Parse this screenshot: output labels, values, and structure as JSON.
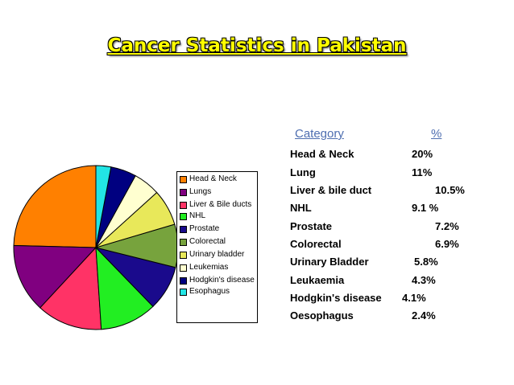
{
  "slide": {
    "title": "Cancer Statistics in Pakistan"
  },
  "table": {
    "header_category": "Category",
    "header_percent": "%",
    "rows": [
      {
        "label": "Head & Neck",
        "value": "20%"
      },
      {
        "label": "Lung",
        "value": "11%"
      },
      {
        "label": "Liver & bile duct",
        "value": "10.5%"
      },
      {
        "label": "NHL",
        "value": "9.1 %"
      },
      {
        "label": "Prostate",
        "value": "7.2%"
      },
      {
        "label": "Colorectal",
        "value": "6.9%"
      },
      {
        "label": "Urinary Bladder",
        "value": "5.8%"
      },
      {
        "label": "Leukaemia",
        "value": "4.3%"
      },
      {
        "label": "Hodgkin's disease",
        "value": "4.1%"
      },
      {
        "label": "Oesophagus",
        "value": "2.4%"
      }
    ]
  },
  "chart_data": {
    "type": "pie",
    "title": "",
    "legend_position": "right",
    "slices": [
      {
        "name": "Head & Neck",
        "value": 20,
        "color": "#ff8000"
      },
      {
        "name": "Lungs",
        "value": 11,
        "color": "#800080"
      },
      {
        "name": "Liver & Bile ducts",
        "value": 10.5,
        "color": "#ff3366"
      },
      {
        "name": "NHL",
        "value": 9.1,
        "color": "#22ee22"
      },
      {
        "name": "Prostate",
        "value": 7.2,
        "color": "#1a0a8c"
      },
      {
        "name": "Colorectal",
        "value": 6.9,
        "color": "#77a33d"
      },
      {
        "name": "Urinary bladder",
        "value": 5.8,
        "color": "#e8e85a"
      },
      {
        "name": "Leukemias",
        "value": 4.3,
        "color": "#ffffd0"
      },
      {
        "name": "Hodgkin's disease",
        "value": 4.1,
        "color": "#000080"
      },
      {
        "name": "Esophagus",
        "value": 2.4,
        "color": "#22e5e5"
      }
    ]
  }
}
